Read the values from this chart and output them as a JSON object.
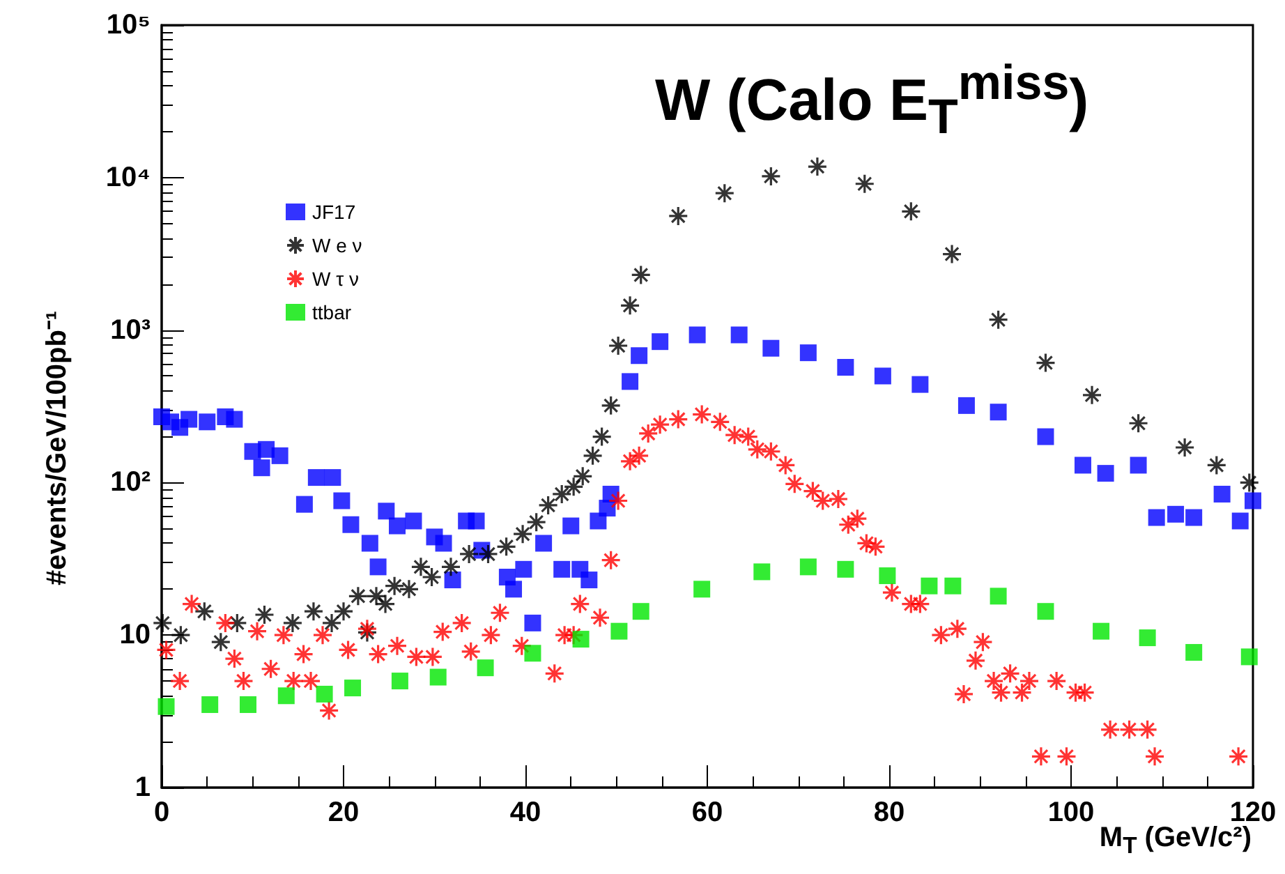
{
  "chart_data": {
    "type": "scatter",
    "title": "W (Calo E$_{T}$$^{miss}$)",
    "xlabel": "M$_{T}$ (GeV/c²)",
    "ylabel": "#events/GeV/100pb⁻¹",
    "xlim": [
      0,
      120
    ],
    "xticks": [
      0,
      20,
      40,
      60,
      80,
      100,
      120
    ],
    "ylim": [
      1,
      100000
    ],
    "yticks": [
      {
        "value": 1,
        "label": "1"
      },
      {
        "value": 10,
        "label": "10"
      },
      {
        "value": 100,
        "label": "10²"
      },
      {
        "value": 1000,
        "label": "10³"
      },
      {
        "value": 10000,
        "label": "10⁴"
      },
      {
        "value": 100000,
        "label": "10⁵"
      }
    ],
    "log": "y",
    "grid": false,
    "legend": "top left",
    "series": [
      {
        "name": "JF17",
        "color": "#0000ff",
        "marker": "square",
        "x": [
          0,
          1,
          2,
          3,
          5,
          7,
          8,
          10,
          11,
          11.5,
          13,
          15.7,
          17,
          18.8,
          19.8,
          20.8,
          22.9,
          23.8,
          24.7,
          25.9,
          27.7,
          30,
          31,
          32,
          33.5,
          34.6,
          35.2,
          38,
          38.7,
          39.8,
          40.8,
          42,
          44,
          45,
          46,
          47,
          48,
          49,
          49.4,
          51.5,
          52.5,
          54.8,
          58.9,
          63.5,
          67,
          71.1,
          75.2,
          79.3,
          83.4,
          88.5,
          92,
          97.2,
          101.3,
          103.8,
          107.4,
          109.4,
          111.5,
          113.5,
          116.6,
          118.6,
          120
        ],
        "values": [
          270,
          250,
          230,
          260,
          250,
          270,
          260,
          160,
          125,
          165,
          150,
          72,
          108,
          108,
          76,
          53,
          40,
          28,
          65,
          52,
          56,
          44,
          40,
          23,
          56,
          56,
          36,
          24,
          20,
          27,
          12,
          40,
          27,
          52,
          27,
          23,
          56,
          68,
          84,
          460,
          680,
          840,
          930,
          930,
          760,
          710,
          570,
          500,
          440,
          320,
          290,
          200,
          130,
          115,
          130,
          59,
          62,
          59,
          84,
          56,
          76
        ]
      },
      {
        "name": "W e ν",
        "color": "#000000",
        "marker": "cross",
        "x": [
          0.1,
          2.1,
          4.7,
          6.5,
          8.3,
          11.3,
          14.4,
          16.7,
          18.7,
          20,
          21.6,
          22.6,
          23.6,
          24.6,
          25.6,
          27.2,
          28.5,
          29.7,
          31.8,
          33.8,
          35.9,
          37.9,
          39.7,
          41.2,
          42.5,
          44,
          45.3,
          46.3,
          47.4,
          48.4,
          49.4,
          50.2,
          51.5,
          52.7,
          56.8,
          61.9,
          67,
          72.1,
          77.3,
          82.4,
          86.9,
          92,
          97.2,
          102.3,
          107.4,
          112.5,
          116,
          119.6
        ],
        "values": [
          12,
          10,
          14.3,
          9,
          12,
          13.6,
          12,
          14.3,
          12,
          14.3,
          18,
          10.4,
          18,
          16,
          21,
          20,
          28,
          24,
          28,
          34,
          34,
          38,
          46,
          55,
          71,
          84,
          94,
          110,
          150,
          200,
          320,
          790,
          1450,
          2300,
          5600,
          7900,
          10200,
          11800,
          9100,
          6000,
          3150,
          1170,
          610,
          375,
          245,
          170,
          130,
          100
        ]
      },
      {
        "name": "W τ ν",
        "color": "#ff0000",
        "marker": "cross",
        "x": [
          0.5,
          2,
          3.3,
          7,
          8,
          9,
          10.5,
          12,
          13.4,
          14.5,
          15.6,
          16.4,
          17.7,
          18.4,
          20.5,
          22.6,
          23.8,
          25.9,
          28,
          29.8,
          30.9,
          33,
          34,
          36.2,
          37.2,
          39.6,
          43.2,
          44.3,
          45.3,
          46,
          48.2,
          49.4,
          50.2,
          51.5,
          52.5,
          53.5,
          54.8,
          56.8,
          59.4,
          61.4,
          63,
          64.5,
          65.5,
          67,
          68.6,
          69.6,
          71.6,
          72.7,
          74.4,
          75.5,
          76.5,
          77.5,
          78.5,
          80.3,
          82.4,
          83.4,
          85.7,
          87.5,
          88.2,
          89.5,
          90.3,
          91.5,
          92.3,
          93.3,
          94.6,
          95.4,
          96.7,
          98.4,
          99.5,
          100.5,
          101.5,
          104.3,
          106.4,
          108.4,
          109.2,
          118.4
        ],
        "values": [
          8,
          5,
          16,
          12,
          7,
          5,
          10.6,
          6,
          10,
          5,
          7.5,
          5,
          10,
          3.2,
          8,
          11,
          7.5,
          8.5,
          7.2,
          7.2,
          10.5,
          12,
          7.8,
          10,
          14,
          8.5,
          5.6,
          10,
          10,
          16,
          13,
          31,
          76,
          138,
          150,
          210,
          240,
          260,
          280,
          250,
          205,
          200,
          165,
          160,
          130,
          98,
          88,
          76,
          78,
          53,
          58,
          40,
          38,
          19,
          16,
          16,
          10,
          11,
          4.1,
          6.8,
          9,
          5,
          4.2,
          5.6,
          4.2,
          5,
          1.6,
          5,
          1.6,
          4.2,
          4.2,
          2.4,
          2.4,
          2.4,
          1.6,
          1.6
        ]
      },
      {
        "name": "ttbar",
        "color": "#00e600",
        "marker": "square",
        "x": [
          0.5,
          5.3,
          9.5,
          13.7,
          17.9,
          21,
          26.2,
          30.4,
          35.6,
          40.8,
          46.1,
          50.3,
          52.7,
          59.4,
          66,
          71.1,
          75.2,
          79.8,
          84.4,
          87,
          92,
          97.2,
          103.3,
          108.4,
          113.5,
          119.6
        ],
        "values": [
          3.4,
          3.5,
          3.5,
          4,
          4.1,
          4.5,
          5,
          5.3,
          6.1,
          7.6,
          9.4,
          10.6,
          14.3,
          20,
          26,
          28,
          27,
          24.5,
          21,
          21,
          18,
          14.3,
          10.6,
          9.6,
          7.7,
          7.2
        ]
      }
    ]
  }
}
